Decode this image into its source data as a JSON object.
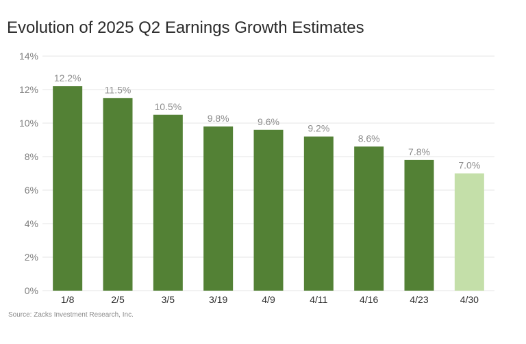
{
  "chart_data": {
    "type": "bar",
    "title": "Evolution of 2025 Q2 Earnings Growth Estimates",
    "categories": [
      "1/8",
      "2/5",
      "3/5",
      "3/19",
      "4/9",
      "4/11",
      "4/16",
      "4/23",
      "4/30"
    ],
    "values": [
      12.2,
      11.5,
      10.5,
      9.8,
      9.6,
      9.2,
      8.6,
      7.8,
      7.0
    ],
    "data_labels": [
      "12.2%",
      "11.5%",
      "10.5%",
      "9.8%",
      "9.6%",
      "9.2%",
      "8.6%",
      "7.8%",
      "7.0%"
    ],
    "xlabel": "",
    "ylabel": "",
    "ylim": [
      0,
      14
    ],
    "y_ticks": [
      0,
      2,
      4,
      6,
      8,
      10,
      12,
      14
    ],
    "y_tick_labels": [
      "0%",
      "2%",
      "4%",
      "6%",
      "8%",
      "10%",
      "12%",
      "14%"
    ],
    "grid": true,
    "legend": "none",
    "colors": {
      "bar": "#538135",
      "bar_highlight": "#c4dfa9",
      "grid": "#e6e6e6",
      "tick_text": "#7f7f7f",
      "label_text": "#8c8c8c"
    },
    "highlight_index": 8,
    "source": "Source: Zacks Investment Research, Inc."
  }
}
